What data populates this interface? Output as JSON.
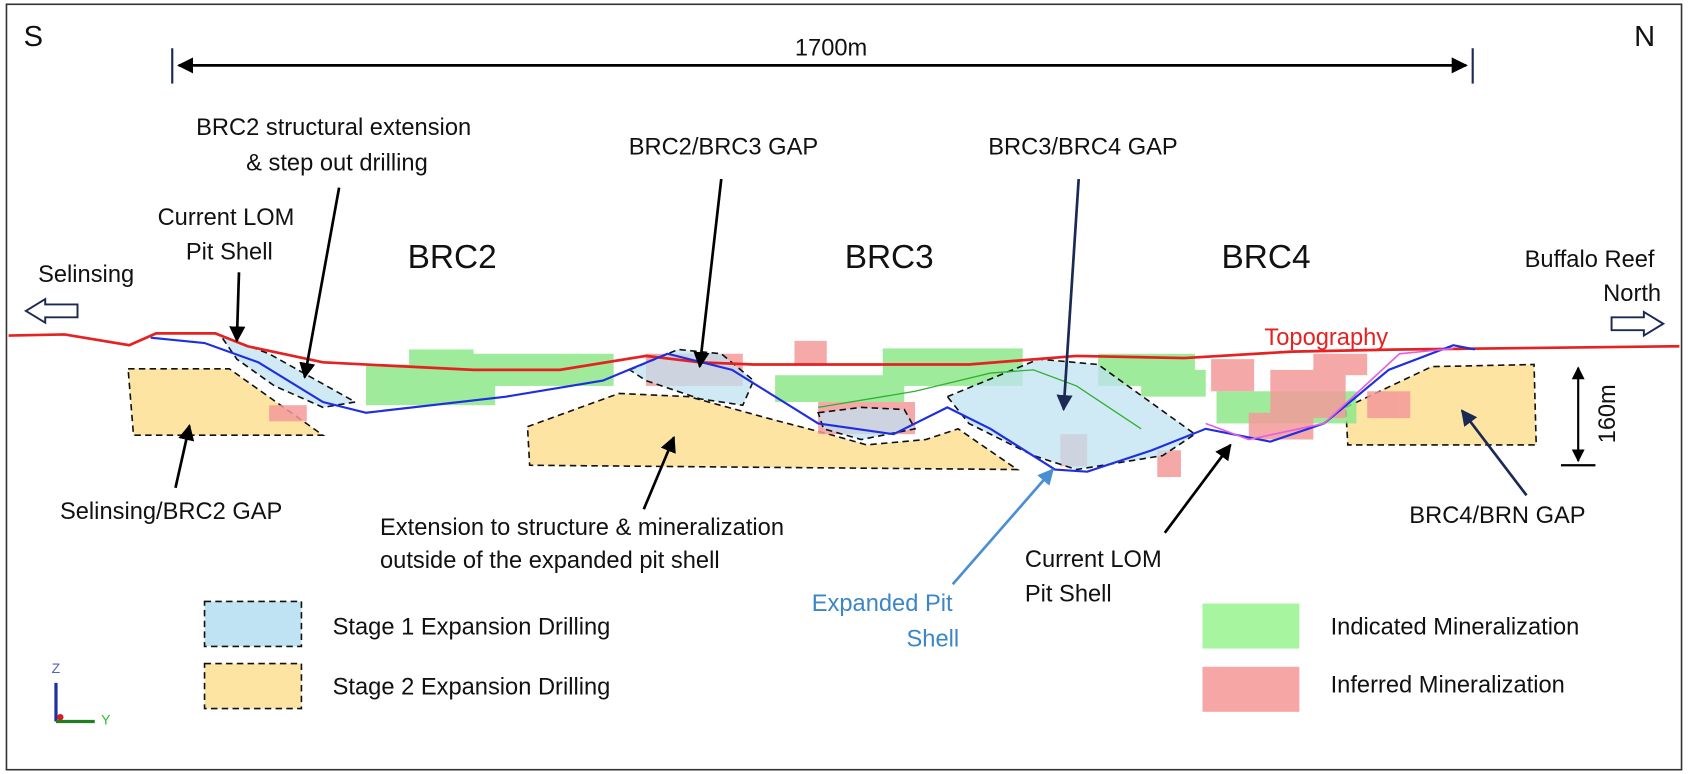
{
  "compass": {
    "south": "S",
    "north": "N"
  },
  "scale": {
    "horizontal": "1700m",
    "vertical": "160m"
  },
  "zones": [
    "BRC2",
    "BRC3",
    "BRC4"
  ],
  "directions": {
    "left": "Selinsing",
    "right": [
      "Buffalo Reef",
      "North"
    ]
  },
  "annotations": {
    "structural_extension": [
      "BRC2 structural extension",
      "& step out drilling"
    ],
    "current_lom_left": [
      "Current LOM",
      "Pit Shell"
    ],
    "brc2_brc3_gap": "BRC2/BRC3 GAP",
    "brc3_brc4_gap": "BRC3/BRC4 GAP",
    "topography": "Topography",
    "selinsing_brc2_gap": "Selinsing/BRC2 GAP",
    "extension_outside": [
      "Extension to structure & mineralization",
      "outside of the expanded pit shell"
    ],
    "expanded_pit_shell": [
      "Expanded Pit",
      "Shell"
    ],
    "current_lom_right": [
      "Current LOM",
      "Pit Shell"
    ],
    "brc4_brn_gap": "BRC4/BRN GAP"
  },
  "legend": {
    "stage1": "Stage 1 Expansion Drilling",
    "stage2": "Stage 2 Expansion Drilling",
    "indicated": "Indicated Mineralization",
    "inferred": "Inferred Mineralization"
  },
  "axes_icon": {
    "z": "Z",
    "y": "Y"
  }
}
